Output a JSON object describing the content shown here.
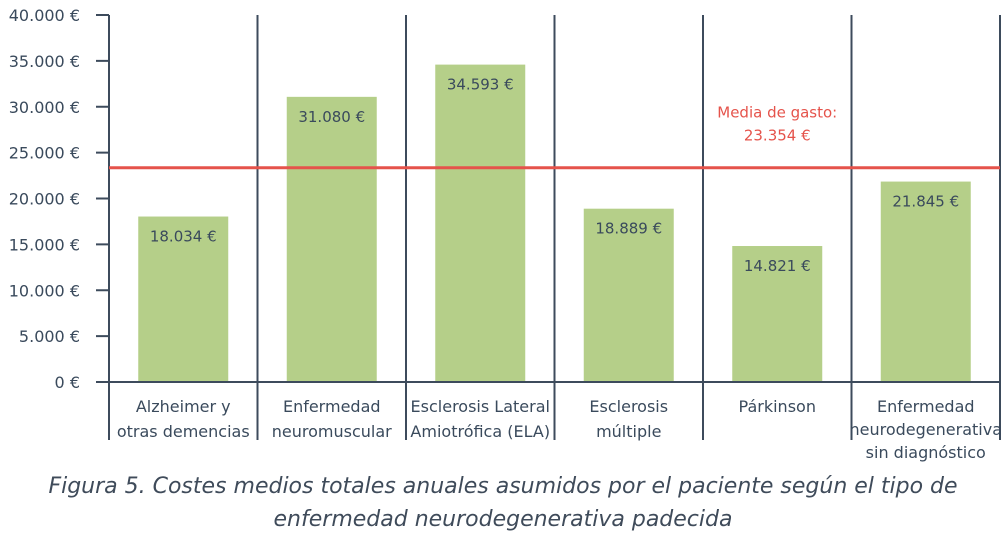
{
  "chart_data": {
    "type": "bar",
    "categories": [
      [
        "Alzheimer y",
        "otras demencias"
      ],
      [
        "Enfermedad",
        "neuromuscular"
      ],
      [
        "Esclerosis Lateral",
        "Amiotrófica (ELA)"
      ],
      [
        "Esclerosis",
        "múltiple"
      ],
      [
        "Párkinson"
      ],
      [
        "Enfermedad",
        "neurodegenerativa",
        "sin diagnóstico"
      ]
    ],
    "values": [
      18034,
      31080,
      34593,
      18889,
      14821,
      21845
    ],
    "value_labels": [
      "18.034 €",
      "31.080 €",
      "34.593 €",
      "18.889 €",
      "14.821 €",
      "21.845 €"
    ],
    "ylim": [
      0,
      40000
    ],
    "yticks": [
      0,
      5000,
      10000,
      15000,
      20000,
      25000,
      30000,
      35000,
      40000
    ],
    "ytick_labels": [
      "0 €",
      "5.000 €",
      "10.000 €",
      "15.000 €",
      "20.000 €",
      "25.000 €",
      "30.000 €",
      "35.000 €",
      "40.000 €"
    ],
    "reference_line": {
      "value": 23354,
      "label_lines": [
        "Media de gasto:",
        "23.354 €"
      ],
      "color": "#e5534b"
    },
    "bar_color": "#b5cf89",
    "axis_color": "#3d4b5c",
    "grid": false,
    "xlabel": "",
    "ylabel": ""
  },
  "caption": {
    "line1": "Figura 5. Costes medios totales anuales asumidos por el paciente según el tipo de",
    "line2": "enfermedad neurodegenerativa padecida"
  }
}
